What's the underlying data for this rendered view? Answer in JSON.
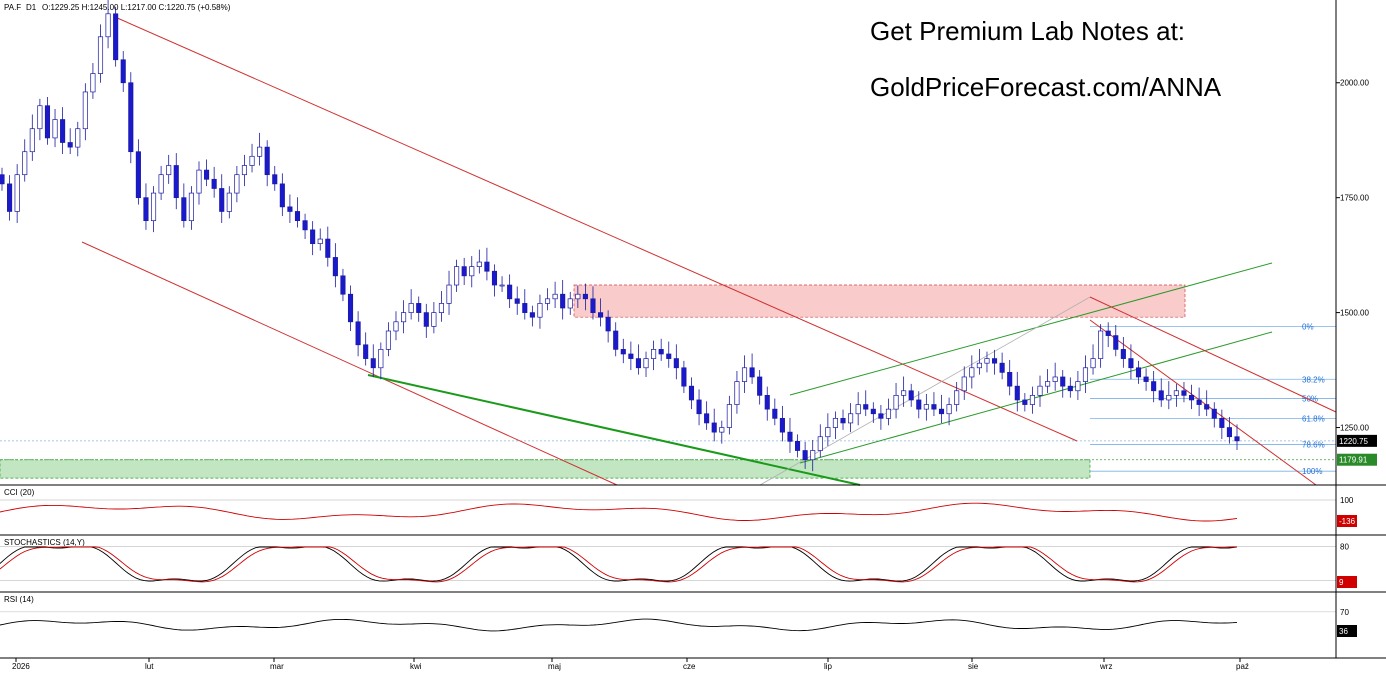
{
  "header": {
    "symbol": "PA.F",
    "timeframe": "D1",
    "ohlc": "O:1229.25  H:1245.00  L:1217.00  C:1220.75  (+0.58%)"
  },
  "promo": {
    "line1": "Get Premium Lab Notes at:",
    "line2": "GoldPriceForecast.com/ANNA"
  },
  "chart_data": {
    "type": "candlestick",
    "y_axis": {
      "ticks": [
        "2000.00",
        "1750.00",
        "1500.00",
        "1250.00"
      ],
      "ylim": [
        1125,
        2180
      ]
    },
    "x_axis": {
      "labels": [
        "2026",
        "lut",
        "mar",
        "kwi",
        "maj",
        "cze",
        "lip",
        "sie",
        "wrz",
        "paź"
      ]
    },
    "price_labels": {
      "last": "1220.75",
      "support": "1179.91"
    },
    "fibonacci": [
      {
        "label": "0%",
        "level": 1470
      },
      {
        "label": "38.2%",
        "level": 1355
      },
      {
        "label": "50%",
        "level": 1313
      },
      {
        "label": "61.8%",
        "level": 1270
      },
      {
        "label": "78.6%",
        "level": 1213
      },
      {
        "label": "100%",
        "level": 1155
      }
    ],
    "zones": [
      {
        "name": "resistance-zone",
        "color": "#f5a0a0",
        "low": 1490,
        "high": 1560
      },
      {
        "name": "support-zone",
        "color": "#8fd08f",
        "low": 1140,
        "high": 1180
      }
    ],
    "candles_approx": [
      1780,
      1720,
      1800,
      1850,
      1900,
      1950,
      1880,
      1920,
      1870,
      1860,
      1900,
      1980,
      2020,
      2100,
      2150,
      2050,
      2000,
      1850,
      1750,
      1700,
      1760,
      1800,
      1820,
      1750,
      1700,
      1760,
      1810,
      1790,
      1770,
      1720,
      1760,
      1800,
      1820,
      1840,
      1860,
      1800,
      1780,
      1730,
      1720,
      1700,
      1680,
      1650,
      1660,
      1620,
      1580,
      1540,
      1480,
      1430,
      1400,
      1380,
      1420,
      1460,
      1480,
      1500,
      1520,
      1500,
      1470,
      1500,
      1520,
      1560,
      1600,
      1580,
      1600,
      1610,
      1590,
      1560,
      1560,
      1530,
      1520,
      1500,
      1490,
      1520,
      1530,
      1540,
      1510,
      1530,
      1540,
      1530,
      1500,
      1490,
      1460,
      1420,
      1410,
      1400,
      1380,
      1400,
      1420,
      1410,
      1400,
      1380,
      1340,
      1310,
      1280,
      1260,
      1240,
      1250,
      1300,
      1350,
      1380,
      1360,
      1320,
      1290,
      1270,
      1240,
      1220,
      1200,
      1180,
      1200,
      1230,
      1250,
      1270,
      1260,
      1280,
      1300,
      1290,
      1280,
      1270,
      1290,
      1320,
      1330,
      1310,
      1290,
      1300,
      1290,
      1280,
      1300,
      1330,
      1360,
      1380,
      1390,
      1400,
      1390,
      1370,
      1340,
      1310,
      1300,
      1320,
      1340,
      1350,
      1360,
      1340,
      1330,
      1350,
      1380,
      1400,
      1460,
      1450,
      1420,
      1400,
      1380,
      1360,
      1350,
      1330,
      1310,
      1320,
      1330,
      1320,
      1310,
      1300,
      1290,
      1270,
      1250,
      1230,
      1221
    ],
    "indicators": [
      {
        "name": "CCI (20)",
        "ticks": [
          "100"
        ],
        "last": "-136",
        "series_color": "#d00000"
      },
      {
        "name": "STOCHASTICS (14,Y)",
        "ticks": [
          "80",
          "20"
        ],
        "last": "9",
        "series_color": "#000000",
        "signal_color": "#d00000"
      },
      {
        "name": "RSI (14)",
        "ticks": [
          "70"
        ],
        "last": "36",
        "series_color": "#000000"
      }
    ]
  }
}
